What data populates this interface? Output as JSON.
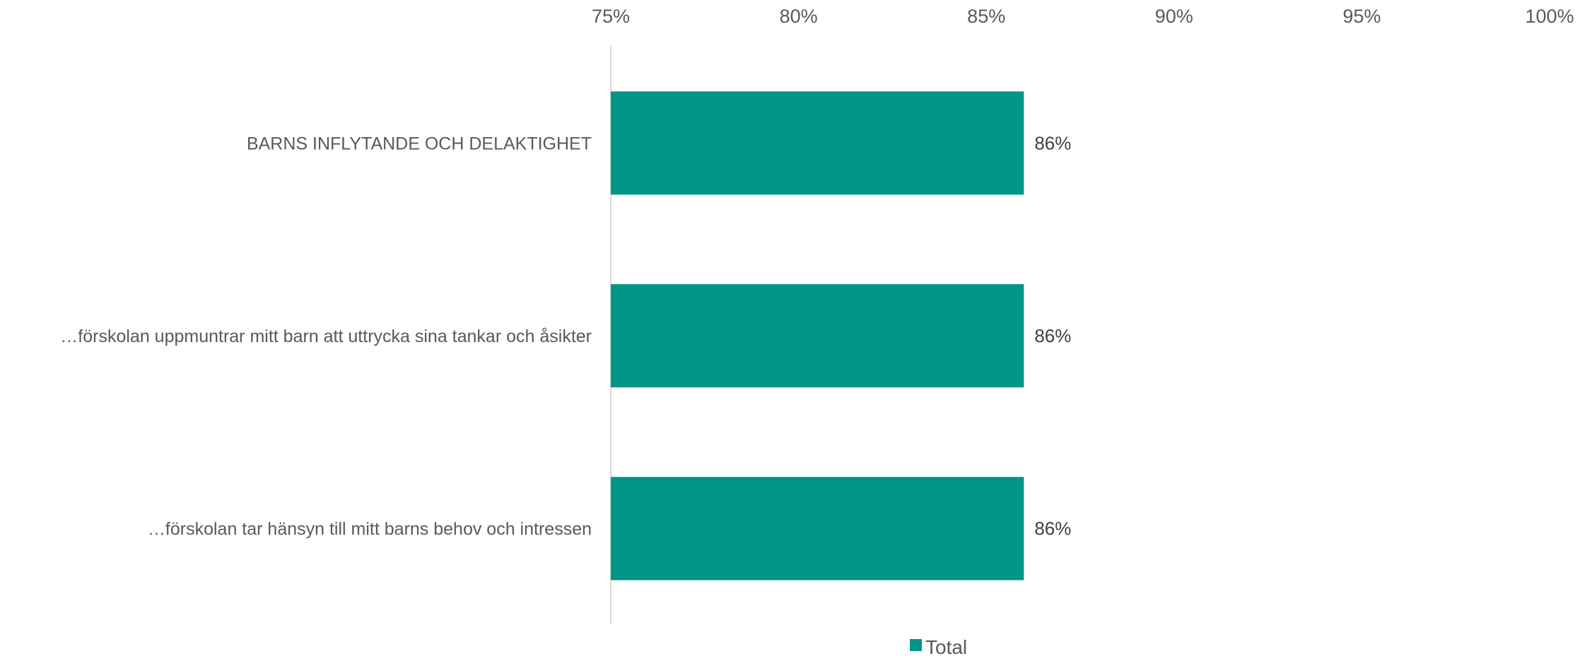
{
  "chart_data": {
    "type": "bar",
    "orientation": "horizontal",
    "categories": [
      "BARNS INFLYTANDE OCH DELAKTIGHET",
      "…förskolan uppmuntrar mitt barn att uttrycka sina tankar och åsikter",
      "…förskolan tar hänsyn till mitt barns behov och intressen"
    ],
    "series": [
      {
        "name": "Total",
        "values": [
          0.86,
          0.86,
          0.86
        ],
        "data_labels": [
          "86%",
          "86%",
          "86%"
        ],
        "color": "#009688"
      }
    ],
    "xlim": [
      0.75,
      1.0
    ],
    "x_ticks": [
      0.75,
      0.8,
      0.85,
      0.9,
      0.95,
      1.0
    ],
    "x_tick_labels": [
      "75%",
      "80%",
      "85%",
      "90%",
      "95%",
      "100%"
    ],
    "x_axis_position": "top",
    "grid": false,
    "legend": {
      "position": "bottom",
      "entries": [
        "Total"
      ]
    },
    "title": "",
    "xlabel": "",
    "ylabel": ""
  }
}
